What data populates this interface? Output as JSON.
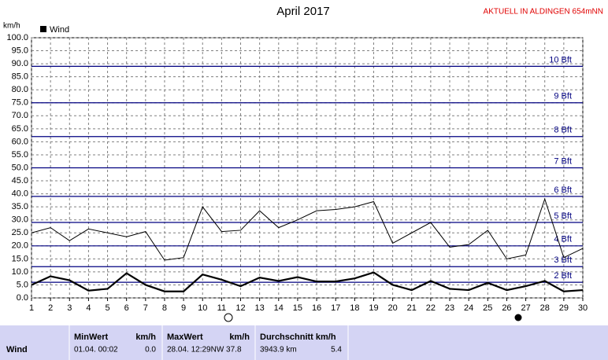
{
  "chart_data": {
    "type": "line",
    "title": "April 2017",
    "annotation": "AKTUELL IN ALDINGEN 654mNN",
    "y_label": "km/h",
    "x": [
      1,
      2,
      3,
      4,
      5,
      6,
      7,
      8,
      9,
      10,
      11,
      12,
      13,
      14,
      15,
      16,
      17,
      18,
      19,
      20,
      21,
      22,
      23,
      24,
      25,
      26,
      27,
      28,
      29,
      30
    ],
    "xlim": [
      1,
      30
    ],
    "xticks": [
      1,
      2,
      3,
      4,
      5,
      6,
      7,
      8,
      9,
      10,
      11,
      12,
      13,
      14,
      15,
      16,
      17,
      18,
      19,
      20,
      21,
      22,
      23,
      24,
      25,
      26,
      27,
      28,
      29,
      30
    ],
    "ylim": [
      0,
      100
    ],
    "yticks": [
      {
        "value": 0,
        "label": "0.0"
      },
      {
        "value": 5,
        "label": "5.0"
      },
      {
        "value": 10,
        "label": "10.0"
      },
      {
        "value": 15,
        "label": "15.0"
      },
      {
        "value": 20,
        "label": "20.0"
      },
      {
        "value": 25,
        "label": "25.0"
      },
      {
        "value": 30,
        "label": "30.0"
      },
      {
        "value": 35,
        "label": "35.0"
      },
      {
        "value": 40,
        "label": "40.0"
      },
      {
        "value": 45,
        "label": "45.0"
      },
      {
        "value": 50,
        "label": "50.0"
      },
      {
        "value": 55,
        "label": "55.0"
      },
      {
        "value": 60,
        "label": "60.0"
      },
      {
        "value": 65,
        "label": "65.0"
      },
      {
        "value": 70,
        "label": "70.0"
      },
      {
        "value": 75,
        "label": "75.0"
      },
      {
        "value": 80,
        "label": "80.0"
      },
      {
        "value": 85,
        "label": "85.0"
      },
      {
        "value": 90,
        "label": "90.0"
      },
      {
        "value": 95,
        "label": "95.0"
      },
      {
        "value": 100,
        "label": "100.0"
      }
    ],
    "grid": true,
    "bft_lines": [
      {
        "value": 6,
        "label": "2 Bft"
      },
      {
        "value": 12,
        "label": "3 Bft"
      },
      {
        "value": 20,
        "label": "4 Bft"
      },
      {
        "value": 29,
        "label": "5 Bft"
      },
      {
        "value": 39,
        "label": "6 Bft"
      },
      {
        "value": 50,
        "label": "7 Bft"
      },
      {
        "value": 62,
        "label": "8 Bft"
      },
      {
        "value": 75,
        "label": "9 Bft"
      },
      {
        "value": 89,
        "label": "10 Bft"
      }
    ],
    "bft_color": "#000080",
    "series": [
      {
        "name": "Wind",
        "color": "#000000",
        "values": [
          5,
          8.3,
          6.8,
          2.8,
          3.5,
          9.5,
          5,
          2.5,
          2.5,
          9,
          7,
          4.5,
          7.8,
          6.5,
          8,
          6.3,
          6.3,
          7.5,
          9.8,
          5,
          3,
          6.5,
          3.5,
          3,
          5.8,
          3,
          4.5,
          6.5,
          2.5,
          3
        ]
      },
      {
        "color": "#000000",
        "values": [
          25,
          27,
          22,
          26.5,
          25,
          23.5,
          25.5,
          14.5,
          15.5,
          35,
          25.5,
          26,
          33.5,
          27,
          30,
          33.5,
          34,
          35,
          37,
          21,
          25,
          29,
          19.5,
          20.5,
          26,
          15,
          16.5,
          38,
          15.5,
          19
        ]
      }
    ],
    "table": {
      "headers": [
        "MinWert",
        "km/h",
        "MaxWert",
        "km/h",
        "Durchschnitt km/h"
      ],
      "row": [
        "Wind",
        "01.04.  00:02",
        "0.0",
        "28.04.  12:29NW 37.8",
        "3943.9 km",
        "5.4"
      ]
    }
  }
}
